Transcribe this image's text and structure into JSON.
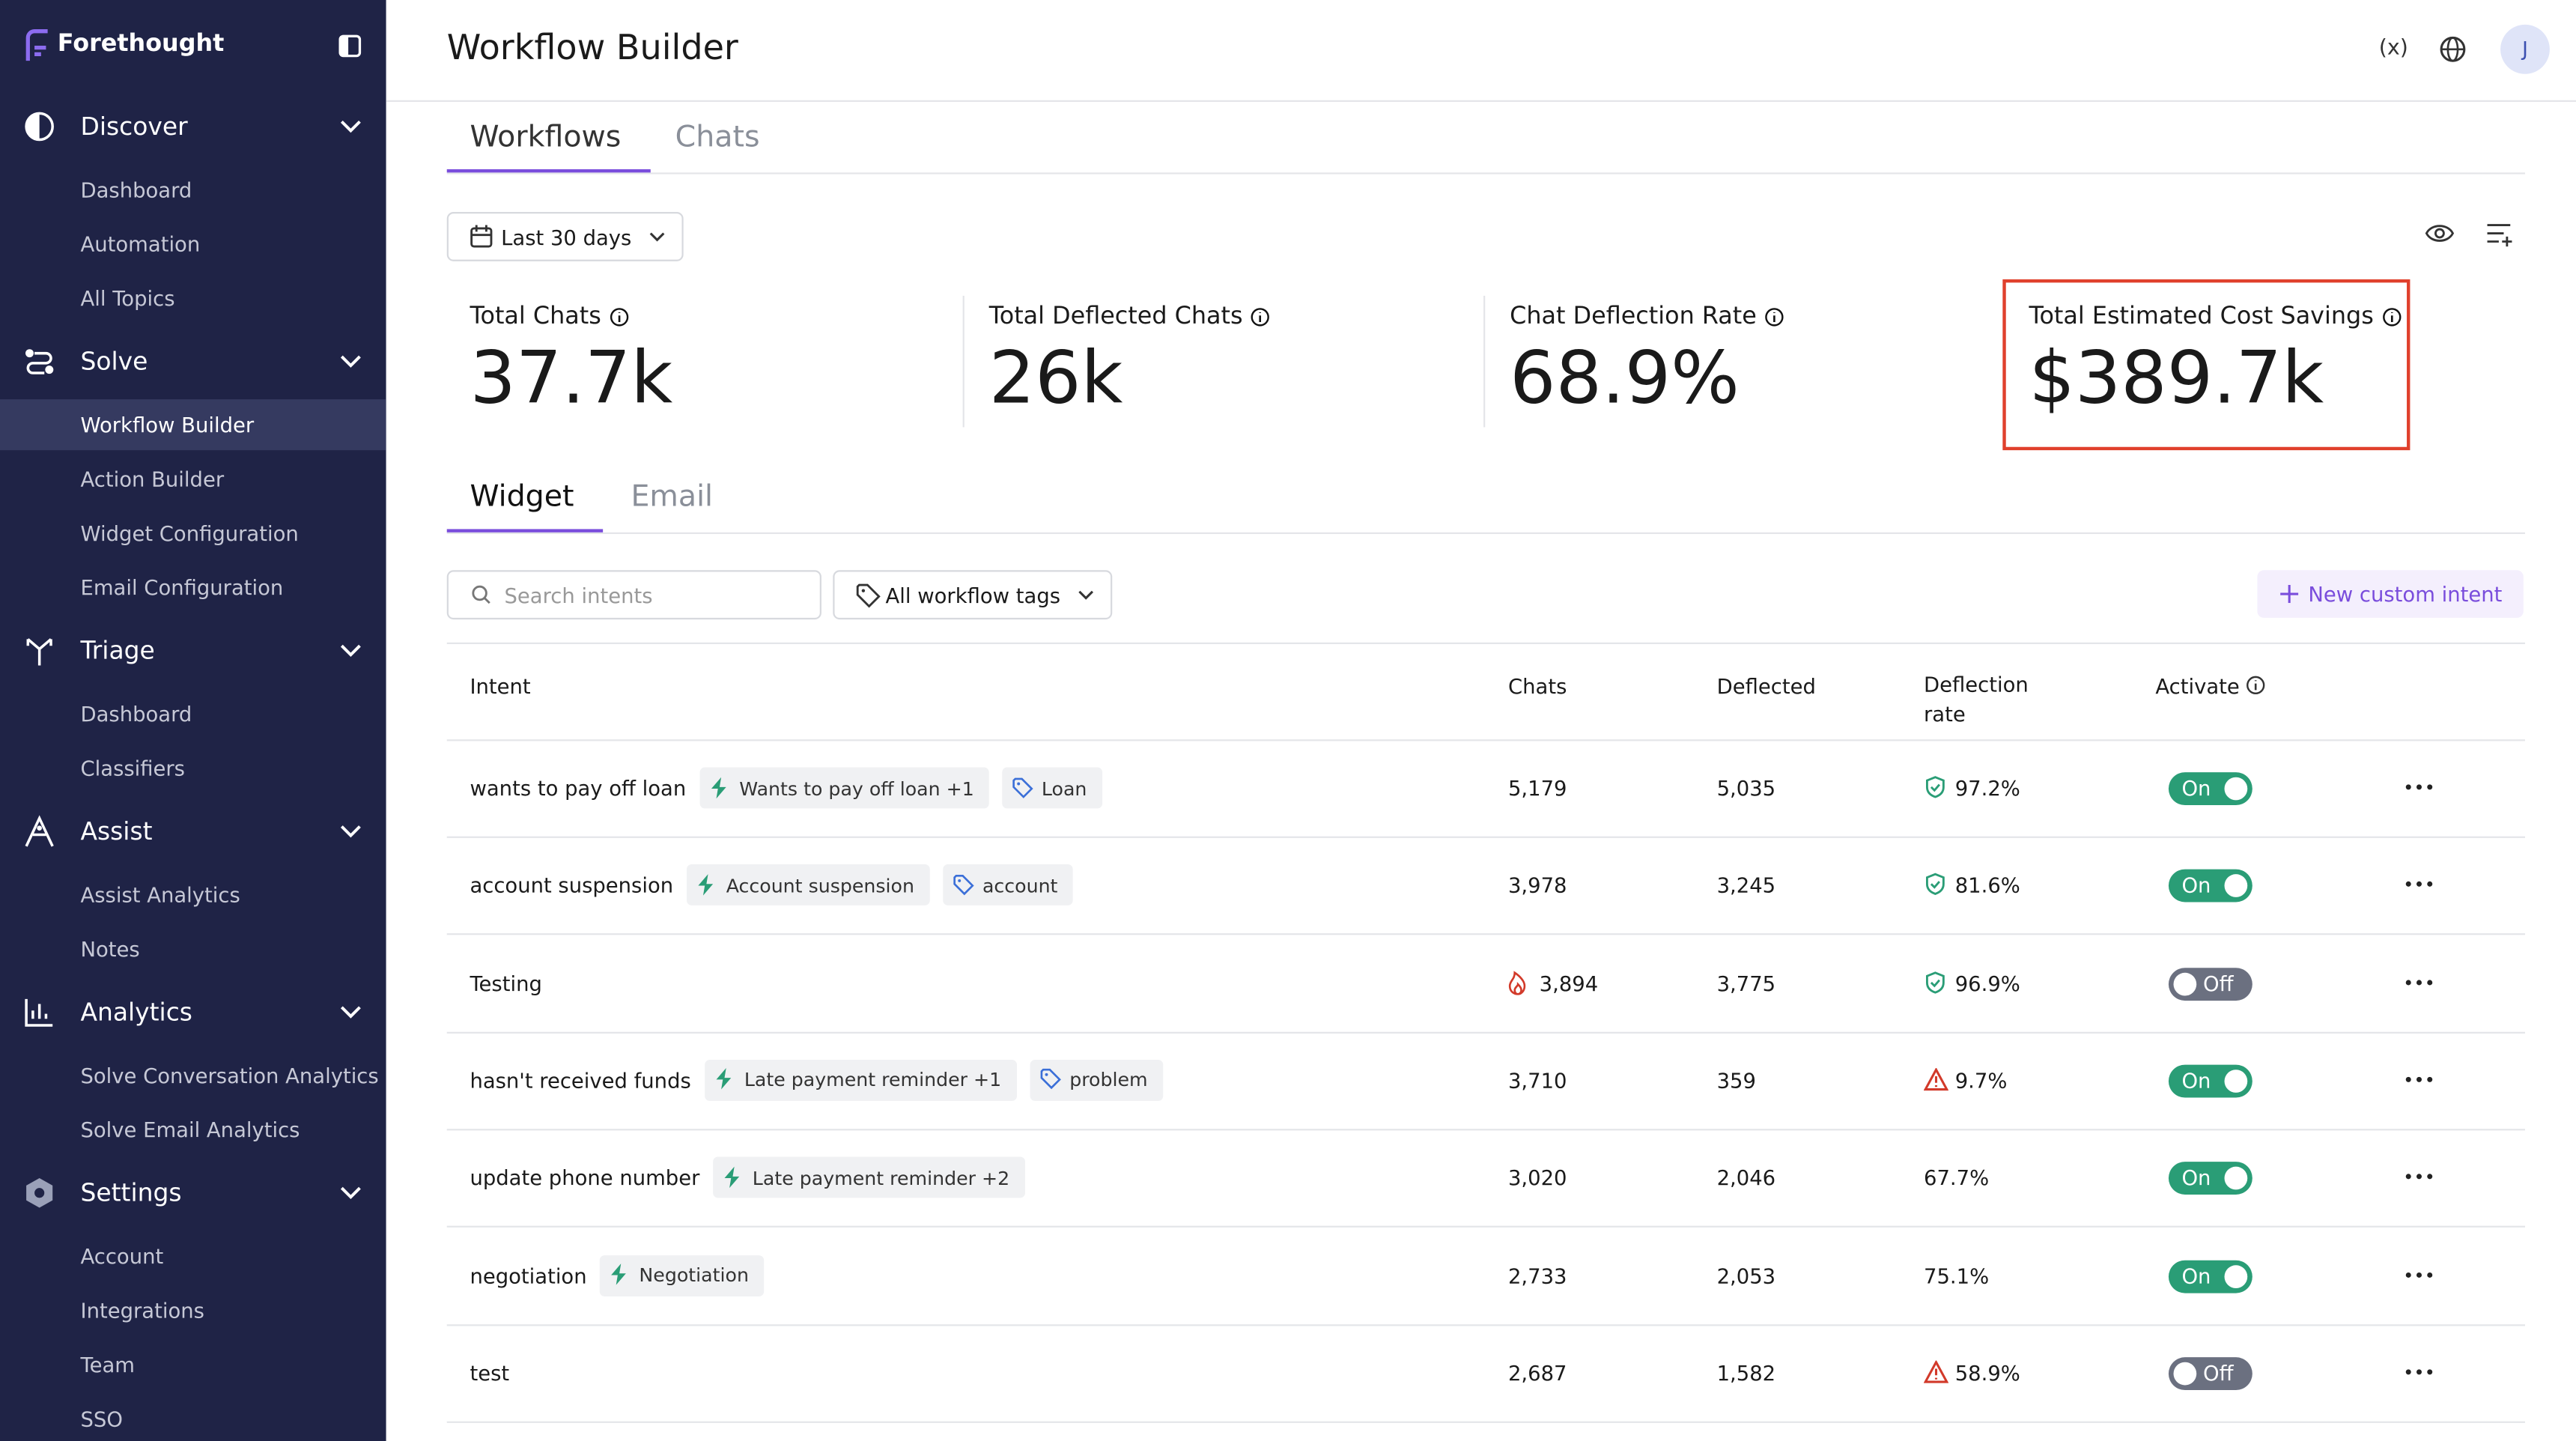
{
  "app": {
    "logo": "Forethought",
    "page_title": "Workflow Builder",
    "variables_button": "(x)",
    "avatar": "J"
  },
  "sidebar": [
    {
      "label": "Discover",
      "icon": "discover",
      "items": [
        "Dashboard",
        "Automation",
        "All Topics"
      ]
    },
    {
      "label": "Solve",
      "icon": "solve",
      "items": [
        "Workflow Builder",
        "Action Builder",
        "Widget Configuration",
        "Email Configuration"
      ],
      "active_item": 0
    },
    {
      "label": "Triage",
      "icon": "triage",
      "items": [
        "Dashboard",
        "Classifiers"
      ]
    },
    {
      "label": "Assist",
      "icon": "assist",
      "items": [
        "Assist Analytics",
        "Notes"
      ]
    },
    {
      "label": "Analytics",
      "icon": "analytics",
      "items": [
        "Solve Conversation Analytics",
        "Solve Email Analytics"
      ]
    },
    {
      "label": "Settings",
      "icon": "settings",
      "items": [
        "Account",
        "Integrations",
        "Team",
        "SSO"
      ]
    }
  ],
  "tabs": [
    "Workflows",
    "Chats"
  ],
  "date_filter": "Last 30 days",
  "metrics": [
    {
      "label": "Total Chats",
      "value": "37.7k"
    },
    {
      "label": "Total Deflected Chats",
      "value": "26k"
    },
    {
      "label": "Chat Deflection Rate",
      "value": "68.9%"
    },
    {
      "label": "Total Estimated Cost Savings",
      "value": "$389.7k",
      "highlighted": true
    }
  ],
  "sub_tabs": [
    "Widget",
    "Email"
  ],
  "search_placeholder": "Search intents",
  "tag_filter": "All workflow tags",
  "new_button": "New custom intent",
  "table": {
    "headers": [
      "Intent",
      "Chats",
      "Deflected",
      "Deflection rate",
      "Activate"
    ],
    "rows": [
      {
        "intent": "wants to pay off loan",
        "tags": [
          {
            "icon": "bolt",
            "label": "Wants to pay off loan +1"
          },
          {
            "icon": "tag",
            "label": "Loan"
          }
        ],
        "chats": "5,179",
        "deflected": "5,035",
        "rate": "97.2%",
        "rate_icon": "shield",
        "status": "On"
      },
      {
        "intent": "account suspension",
        "tags": [
          {
            "icon": "bolt",
            "label": "Account suspension"
          },
          {
            "icon": "tag",
            "label": "account"
          }
        ],
        "chats": "3,978",
        "deflected": "3,245",
        "rate": "81.6%",
        "rate_icon": "shield",
        "status": "On"
      },
      {
        "intent": "Testing",
        "tags": [],
        "chats": "3,894",
        "chats_icon": "flame",
        "deflected": "3,775",
        "rate": "96.9%",
        "rate_icon": "shield",
        "status": "Off"
      },
      {
        "intent": "hasn't received funds",
        "tags": [
          {
            "icon": "bolt",
            "label": "Late payment reminder +1"
          },
          {
            "icon": "tag",
            "label": "problem"
          }
        ],
        "chats": "3,710",
        "deflected": "359",
        "rate": "9.7%",
        "rate_icon": "warning",
        "status": "On"
      },
      {
        "intent": "update phone number",
        "tags": [
          {
            "icon": "bolt",
            "label": "Late payment reminder +2"
          }
        ],
        "chats": "3,020",
        "deflected": "2,046",
        "rate": "67.7%",
        "status": "On"
      },
      {
        "intent": "negotiation",
        "tags": [
          {
            "icon": "bolt",
            "label": "Negotiation"
          }
        ],
        "chats": "2,733",
        "deflected": "2,053",
        "rate": "75.1%",
        "status": "On"
      },
      {
        "intent": "test",
        "tags": [],
        "chats": "2,687",
        "deflected": "1,582",
        "rate": "58.9%",
        "rate_icon": "warning",
        "status": "Off"
      }
    ]
  }
}
